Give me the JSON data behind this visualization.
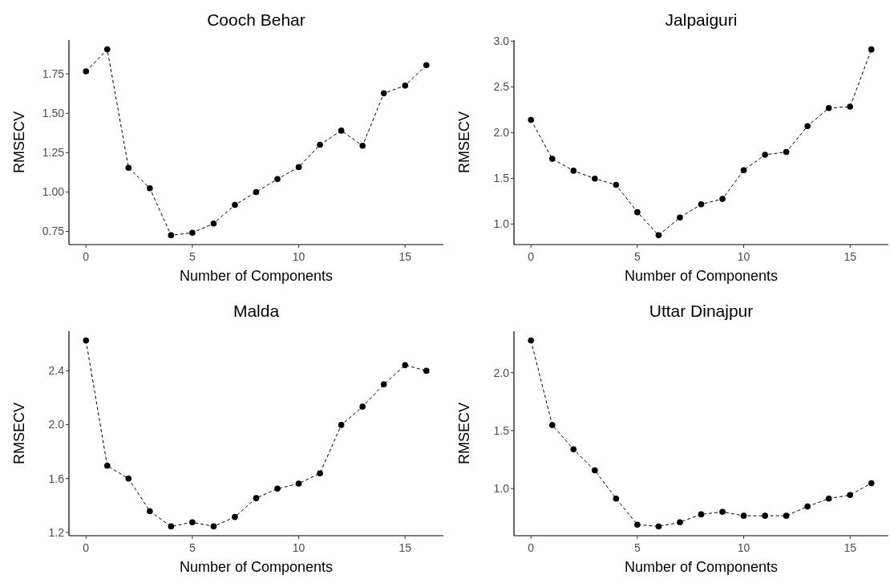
{
  "chart_data": [
    {
      "type": "line",
      "title": "Cooch Behar",
      "xlabel": "Number of Components",
      "ylabel": "RMSECV",
      "marker": "circle",
      "line_style": "dashed",
      "x": [
        0,
        1,
        2,
        3,
        4,
        5,
        6,
        7,
        8,
        9,
        10,
        11,
        12,
        13,
        14,
        15,
        16
      ],
      "series": [
        {
          "color": "#000000",
          "values": [
            1.766,
            1.906,
            1.154,
            1.024,
            0.725,
            0.741,
            0.8,
            0.918,
            1.0,
            1.082,
            1.158,
            1.3,
            1.39,
            1.294,
            1.627,
            1.676,
            1.806
          ]
        }
      ],
      "xlim": [
        -0.8,
        16.8
      ],
      "xticks": [
        0,
        5,
        10,
        15
      ],
      "ylim": [
        0.666,
        1.965
      ],
      "yticks": [
        0.75,
        {
          "value": 1.0,
          "label": "1.00"
        },
        1.25,
        {
          "value": 1.5,
          "label": "1.50"
        },
        1.75
      ]
    },
    {
      "type": "line",
      "title": "Jalpaiguri",
      "xlabel": "Number of Components",
      "ylabel": "RMSECV",
      "marker": "circle",
      "line_style": "dashed",
      "x": [
        0,
        1,
        2,
        3,
        4,
        5,
        6,
        7,
        8,
        9,
        10,
        11,
        12,
        13,
        14,
        15,
        16
      ],
      "series": [
        {
          "color": "#000000",
          "values": [
            2.139,
            1.713,
            1.583,
            1.497,
            1.428,
            1.129,
            0.877,
            1.071,
            1.216,
            1.274,
            1.589,
            1.757,
            1.788,
            2.071,
            2.268,
            2.284,
            2.91
          ]
        }
      ],
      "xlim": [
        -0.8,
        16.8
      ],
      "xticks": [
        0,
        5,
        10,
        15
      ],
      "ylim": [
        0.775,
        3.012
      ],
      "yticks": [
        {
          "value": 1.0,
          "label": "1.0"
        },
        1.5,
        {
          "value": 2.0,
          "label": "2.0"
        },
        2.5,
        {
          "value": 3.0,
          "label": "3.0"
        }
      ]
    },
    {
      "type": "line",
      "title": "Malda",
      "xlabel": "Number of Components",
      "ylabel": "RMSECV",
      "marker": "circle",
      "line_style": "dashed",
      "x": [
        0,
        1,
        2,
        3,
        4,
        5,
        6,
        7,
        8,
        9,
        10,
        11,
        12,
        13,
        14,
        15,
        16
      ],
      "series": [
        {
          "color": "#000000",
          "values": [
            2.625,
            1.695,
            1.6,
            1.358,
            1.245,
            1.275,
            1.245,
            1.315,
            1.455,
            1.525,
            1.563,
            1.639,
            1.998,
            2.134,
            2.299,
            2.442,
            2.4
          ]
        }
      ],
      "xlim": [
        -0.8,
        16.8
      ],
      "xticks": [
        0,
        5,
        10,
        15
      ],
      "ylim": [
        1.176,
        2.694
      ],
      "yticks": [
        1.2,
        1.6,
        {
          "value": 2.0,
          "label": "2.0"
        },
        2.4
      ]
    },
    {
      "type": "line",
      "title": "Uttar Dinajpur",
      "xlabel": "Number of Components",
      "ylabel": "RMSECV",
      "marker": "circle",
      "line_style": "dashed",
      "x": [
        0,
        1,
        2,
        3,
        4,
        5,
        6,
        7,
        8,
        9,
        10,
        11,
        12,
        13,
        14,
        15,
        16
      ],
      "series": [
        {
          "color": "#000000",
          "values": [
            2.278,
            1.548,
            1.338,
            1.157,
            0.913,
            0.688,
            0.673,
            0.709,
            0.777,
            0.799,
            0.765,
            0.765,
            0.765,
            0.845,
            0.913,
            0.944,
            1.046
          ]
        }
      ],
      "xlim": [
        -0.8,
        16.8
      ],
      "xticks": [
        0,
        5,
        10,
        15
      ],
      "ylim": [
        0.593,
        2.358
      ],
      "yticks": [
        {
          "value": 1.0,
          "label": "1.0"
        },
        1.5,
        {
          "value": 2.0,
          "label": "2.0"
        }
      ]
    }
  ]
}
